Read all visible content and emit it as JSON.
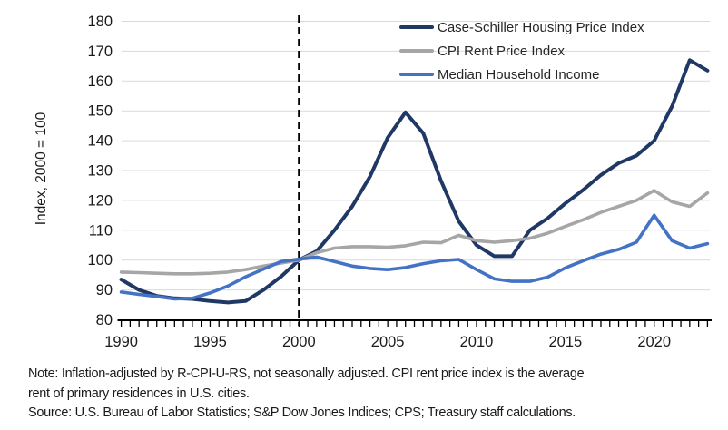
{
  "chart_data": {
    "type": "line",
    "title": "",
    "xlabel": "",
    "ylabel": "Index, 2000 = 100",
    "xlim": [
      1990,
      2023
    ],
    "ylim": [
      80,
      180
    ],
    "y_ticks": [
      80,
      90,
      100,
      110,
      120,
      130,
      140,
      150,
      160,
      170,
      180
    ],
    "x_tick_labels": [
      1990,
      1995,
      2000,
      2005,
      2010,
      2015,
      2020
    ],
    "minor_tick_step_years": 0.5,
    "grid": "horizontal",
    "gridline_color": "#D9D9D9",
    "axis_color": "#000000",
    "reference_line_x": 2000,
    "reference_line_style": "dashed-black-vertical",
    "legend_position": "top-right-inside",
    "x": [
      1990,
      1991,
      1992,
      1993,
      1994,
      1995,
      1996,
      1997,
      1998,
      1999,
      2000,
      2001,
      2002,
      2003,
      2004,
      2005,
      2006,
      2007,
      2008,
      2009,
      2010,
      2011,
      2012,
      2013,
      2014,
      2015,
      2016,
      2017,
      2018,
      2019,
      2020,
      2021,
      2022,
      2023
    ],
    "series": [
      {
        "name": "Case-Schiller Housing Price Index",
        "color": "#1F3864",
        "stroke_width": 4,
        "values": [
          93.5,
          90,
          88,
          87.2,
          87,
          86.3,
          85.8,
          86.3,
          90,
          94.5,
          100,
          103,
          110,
          118,
          128,
          141,
          149.5,
          142.5,
          126.5,
          113,
          105,
          101.3,
          101.3,
          110,
          114,
          119,
          123.5,
          128.5,
          132.5,
          135,
          140,
          151.5,
          167,
          163.5
        ]
      },
      {
        "name": "CPI Rent Price Index",
        "color": "#A6A6A6",
        "stroke_width": 3.6,
        "values": [
          96,
          95.8,
          95.6,
          95.4,
          95.4,
          95.6,
          96,
          96.8,
          98,
          99,
          100,
          102.5,
          104,
          104.5,
          104.5,
          104.3,
          104.8,
          106,
          105.8,
          108.3,
          106.5,
          106,
          106.5,
          107.3,
          109,
          111.3,
          113.5,
          116,
          118,
          120,
          123.3,
          119.5,
          118,
          122.5
        ]
      },
      {
        "name": "Median Household Income",
        "color": "#4472C4",
        "stroke_width": 3.6,
        "values": [
          89.3,
          88.5,
          87.8,
          87,
          87.2,
          89,
          91.3,
          94.4,
          97,
          99.5,
          100.3,
          101,
          99.5,
          98,
          97.2,
          96.8,
          97.5,
          98.8,
          99.8,
          100.2,
          96.8,
          93.7,
          92.9,
          92.9,
          94.3,
          97.4,
          99.8,
          102,
          103.6,
          106,
          115,
          106.5,
          104,
          105.5
        ]
      }
    ]
  },
  "notes": {
    "note": "Note: Inflation-adjusted by R-CPI-U-RS, not seasonally adjusted. CPI rent price index is the average\nrent of primary residences in U.S. cities.",
    "source": "Source: U.S. Bureau of Labor Statistics; S&P Dow Jones Indices; CPS; Treasury staff calculations."
  },
  "colors": {
    "background": "#FFFFFF",
    "text": "#1A1A1A",
    "case_schiller": "#1F3864",
    "cpi_rent": "#A6A6A6",
    "median_income": "#4472C4",
    "gridline": "#D9D9D9"
  }
}
